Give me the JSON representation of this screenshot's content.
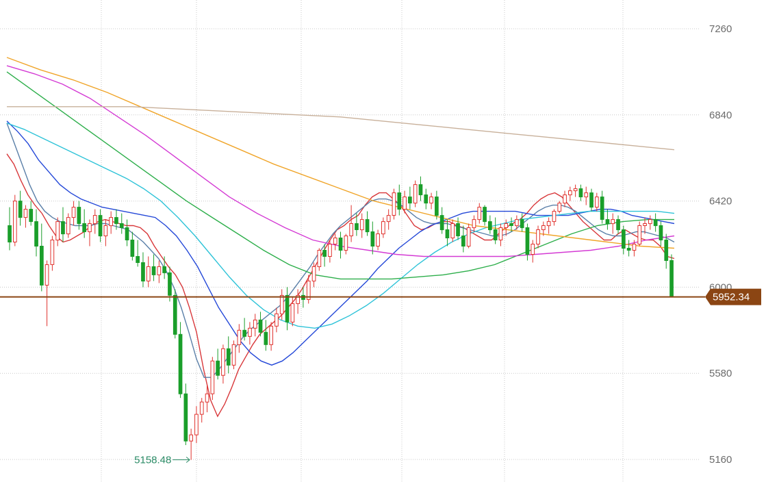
{
  "chart_data": {
    "type": "candlestick",
    "y_axis": {
      "ticks": [
        "7260",
        "6840",
        "6420",
        "6000",
        "5580",
        "5160"
      ],
      "tick_values": [
        7260,
        6840,
        6420,
        6000,
        5580,
        5160
      ],
      "ylim": [
        5050,
        7300
      ],
      "position": "right"
    },
    "grid": true,
    "current_price": {
      "value": 5952.34,
      "label": "5952.34",
      "color": "#8b4513"
    },
    "low_annotation": {
      "value": 5158.48,
      "label": "5158.48",
      "color": "#2c8c67"
    },
    "colors": {
      "up": "#e0312c",
      "down": "#1a9e2a",
      "grid": "#c8c8c8",
      "price_line": "#8b4513"
    },
    "candles": [
      {
        "o": 6300,
        "h": 6390,
        "l": 6180,
        "c": 6220
      },
      {
        "o": 6220,
        "h": 6450,
        "l": 6200,
        "c": 6420
      },
      {
        "o": 6420,
        "h": 6470,
        "l": 6300,
        "c": 6340
      },
      {
        "o": 6340,
        "h": 6400,
        "l": 6290,
        "c": 6380
      },
      {
        "o": 6380,
        "h": 6420,
        "l": 6300,
        "c": 6320
      },
      {
        "o": 6320,
        "h": 6380,
        "l": 6150,
        "c": 6200
      },
      {
        "o": 6200,
        "h": 6310,
        "l": 5980,
        "c": 6010
      },
      {
        "o": 6010,
        "h": 6130,
        "l": 5810,
        "c": 6110
      },
      {
        "o": 6110,
        "h": 6250,
        "l": 6080,
        "c": 6230
      },
      {
        "o": 6230,
        "h": 6340,
        "l": 6200,
        "c": 6320
      },
      {
        "o": 6320,
        "h": 6390,
        "l": 6220,
        "c": 6260
      },
      {
        "o": 6260,
        "h": 6360,
        "l": 6240,
        "c": 6340
      },
      {
        "o": 6340,
        "h": 6420,
        "l": 6300,
        "c": 6390
      },
      {
        "o": 6390,
        "h": 6420,
        "l": 6280,
        "c": 6310
      },
      {
        "o": 6310,
        "h": 6380,
        "l": 6240,
        "c": 6270
      },
      {
        "o": 6270,
        "h": 6330,
        "l": 6200,
        "c": 6310
      },
      {
        "o": 6310,
        "h": 6380,
        "l": 6260,
        "c": 6350
      },
      {
        "o": 6350,
        "h": 6380,
        "l": 6220,
        "c": 6250
      },
      {
        "o": 6250,
        "h": 6330,
        "l": 6200,
        "c": 6300
      },
      {
        "o": 6300,
        "h": 6370,
        "l": 6260,
        "c": 6340
      },
      {
        "o": 6340,
        "h": 6380,
        "l": 6280,
        "c": 6310
      },
      {
        "o": 6310,
        "h": 6360,
        "l": 6260,
        "c": 6290
      },
      {
        "o": 6290,
        "h": 6330,
        "l": 6200,
        "c": 6230
      },
      {
        "o": 6230,
        "h": 6270,
        "l": 6130,
        "c": 6150
      },
      {
        "o": 6150,
        "h": 6230,
        "l": 6100,
        "c": 6120
      },
      {
        "o": 6120,
        "h": 6170,
        "l": 6000,
        "c": 6030
      },
      {
        "o": 6030,
        "h": 6150,
        "l": 6000,
        "c": 6100
      },
      {
        "o": 6100,
        "h": 6160,
        "l": 6030,
        "c": 6060
      },
      {
        "o": 6060,
        "h": 6130,
        "l": 6020,
        "c": 6100
      },
      {
        "o": 6100,
        "h": 6150,
        "l": 6040,
        "c": 6070
      },
      {
        "o": 6070,
        "h": 6100,
        "l": 5930,
        "c": 5960
      },
      {
        "o": 5960,
        "h": 5990,
        "l": 5750,
        "c": 5770
      },
      {
        "o": 5770,
        "h": 5830,
        "l": 5460,
        "c": 5480
      },
      {
        "o": 5480,
        "h": 5530,
        "l": 5230,
        "c": 5250
      },
      {
        "o": 5250,
        "h": 5310,
        "l": 5158,
        "c": 5280
      },
      {
        "o": 5280,
        "h": 5420,
        "l": 5240,
        "c": 5380
      },
      {
        "o": 5380,
        "h": 5460,
        "l": 5340,
        "c": 5440
      },
      {
        "o": 5440,
        "h": 5520,
        "l": 5390,
        "c": 5480
      },
      {
        "o": 5480,
        "h": 5660,
        "l": 5450,
        "c": 5640
      },
      {
        "o": 5640,
        "h": 5700,
        "l": 5550,
        "c": 5570
      },
      {
        "o": 5570,
        "h": 5720,
        "l": 5530,
        "c": 5700
      },
      {
        "o": 5700,
        "h": 5760,
        "l": 5580,
        "c": 5620
      },
      {
        "o": 5620,
        "h": 5740,
        "l": 5600,
        "c": 5720
      },
      {
        "o": 5720,
        "h": 5820,
        "l": 5680,
        "c": 5790
      },
      {
        "o": 5790,
        "h": 5850,
        "l": 5740,
        "c": 5760
      },
      {
        "o": 5760,
        "h": 5830,
        "l": 5720,
        "c": 5800
      },
      {
        "o": 5800,
        "h": 5870,
        "l": 5760,
        "c": 5840
      },
      {
        "o": 5840,
        "h": 5880,
        "l": 5760,
        "c": 5780
      },
      {
        "o": 5780,
        "h": 5840,
        "l": 5690,
        "c": 5720
      },
      {
        "o": 5720,
        "h": 5830,
        "l": 5690,
        "c": 5810
      },
      {
        "o": 5810,
        "h": 5900,
        "l": 5780,
        "c": 5870
      },
      {
        "o": 5870,
        "h": 5990,
        "l": 5840,
        "c": 5960
      },
      {
        "o": 5960,
        "h": 6000,
        "l": 5790,
        "c": 5830
      },
      {
        "o": 5830,
        "h": 5950,
        "l": 5810,
        "c": 5920
      },
      {
        "o": 5920,
        "h": 5990,
        "l": 5870,
        "c": 5960
      },
      {
        "o": 5960,
        "h": 6000,
        "l": 5900,
        "c": 5940
      },
      {
        "o": 5940,
        "h": 6060,
        "l": 5920,
        "c": 6030
      },
      {
        "o": 6030,
        "h": 6120,
        "l": 6000,
        "c": 6100
      },
      {
        "o": 6100,
        "h": 6190,
        "l": 6080,
        "c": 6180
      },
      {
        "o": 6180,
        "h": 6210,
        "l": 6100,
        "c": 6150
      },
      {
        "o": 6150,
        "h": 6230,
        "l": 6120,
        "c": 6210
      },
      {
        "o": 6210,
        "h": 6260,
        "l": 6180,
        "c": 6240
      },
      {
        "o": 6240,
        "h": 6270,
        "l": 6140,
        "c": 6180
      },
      {
        "o": 6180,
        "h": 6260,
        "l": 6160,
        "c": 6250
      },
      {
        "o": 6250,
        "h": 6400,
        "l": 6220,
        "c": 6310
      },
      {
        "o": 6310,
        "h": 6360,
        "l": 6250,
        "c": 6280
      },
      {
        "o": 6280,
        "h": 6360,
        "l": 6240,
        "c": 6330
      },
      {
        "o": 6330,
        "h": 6370,
        "l": 6250,
        "c": 6270
      },
      {
        "o": 6270,
        "h": 6320,
        "l": 6160,
        "c": 6200
      },
      {
        "o": 6200,
        "h": 6280,
        "l": 6180,
        "c": 6260
      },
      {
        "o": 6260,
        "h": 6340,
        "l": 6240,
        "c": 6320
      },
      {
        "o": 6320,
        "h": 6380,
        "l": 6280,
        "c": 6350
      },
      {
        "o": 6350,
        "h": 6480,
        "l": 6330,
        "c": 6460
      },
      {
        "o": 6460,
        "h": 6500,
        "l": 6350,
        "c": 6380
      },
      {
        "o": 6380,
        "h": 6470,
        "l": 6360,
        "c": 6440
      },
      {
        "o": 6440,
        "h": 6490,
        "l": 6380,
        "c": 6410
      },
      {
        "o": 6410,
        "h": 6520,
        "l": 6390,
        "c": 6500
      },
      {
        "o": 6500,
        "h": 6540,
        "l": 6420,
        "c": 6450
      },
      {
        "o": 6450,
        "h": 6480,
        "l": 6380,
        "c": 6410
      },
      {
        "o": 6410,
        "h": 6460,
        "l": 6380,
        "c": 6440
      },
      {
        "o": 6440,
        "h": 6470,
        "l": 6330,
        "c": 6350
      },
      {
        "o": 6350,
        "h": 6390,
        "l": 6260,
        "c": 6280
      },
      {
        "o": 6280,
        "h": 6330,
        "l": 6200,
        "c": 6240
      },
      {
        "o": 6240,
        "h": 6330,
        "l": 6220,
        "c": 6310
      },
      {
        "o": 6310,
        "h": 6340,
        "l": 6230,
        "c": 6250
      },
      {
        "o": 6250,
        "h": 6300,
        "l": 6170,
        "c": 6200
      },
      {
        "o": 6200,
        "h": 6310,
        "l": 6190,
        "c": 6290
      },
      {
        "o": 6290,
        "h": 6350,
        "l": 6270,
        "c": 6330
      },
      {
        "o": 6330,
        "h": 6410,
        "l": 6310,
        "c": 6390
      },
      {
        "o": 6390,
        "h": 6400,
        "l": 6300,
        "c": 6320
      },
      {
        "o": 6320,
        "h": 6350,
        "l": 6260,
        "c": 6280
      },
      {
        "o": 6280,
        "h": 6340,
        "l": 6210,
        "c": 6230
      },
      {
        "o": 6230,
        "h": 6310,
        "l": 6200,
        "c": 6290
      },
      {
        "o": 6290,
        "h": 6330,
        "l": 6250,
        "c": 6310
      },
      {
        "o": 6310,
        "h": 6340,
        "l": 6270,
        "c": 6300
      },
      {
        "o": 6300,
        "h": 6350,
        "l": 6280,
        "c": 6330
      },
      {
        "o": 6330,
        "h": 6360,
        "l": 6270,
        "c": 6290
      },
      {
        "o": 6290,
        "h": 6310,
        "l": 6130,
        "c": 6160
      },
      {
        "o": 6160,
        "h": 6230,
        "l": 6120,
        "c": 6210
      },
      {
        "o": 6210,
        "h": 6300,
        "l": 6190,
        "c": 6280
      },
      {
        "o": 6280,
        "h": 6320,
        "l": 6250,
        "c": 6300
      },
      {
        "o": 6300,
        "h": 6340,
        "l": 6260,
        "c": 6320
      },
      {
        "o": 6320,
        "h": 6380,
        "l": 6300,
        "c": 6370
      },
      {
        "o": 6370,
        "h": 6420,
        "l": 6360,
        "c": 6410
      },
      {
        "o": 6410,
        "h": 6470,
        "l": 6390,
        "c": 6450
      },
      {
        "o": 6450,
        "h": 6490,
        "l": 6420,
        "c": 6470
      },
      {
        "o": 6470,
        "h": 6500,
        "l": 6440,
        "c": 6480
      },
      {
        "o": 6480,
        "h": 6500,
        "l": 6420,
        "c": 6440
      },
      {
        "o": 6440,
        "h": 6490,
        "l": 6400,
        "c": 6460
      },
      {
        "o": 6460,
        "h": 6480,
        "l": 6370,
        "c": 6390
      },
      {
        "o": 6390,
        "h": 6460,
        "l": 6370,
        "c": 6440
      },
      {
        "o": 6440,
        "h": 6470,
        "l": 6310,
        "c": 6330
      },
      {
        "o": 6330,
        "h": 6380,
        "l": 6280,
        "c": 6310
      },
      {
        "o": 6310,
        "h": 6360,
        "l": 6260,
        "c": 6330
      },
      {
        "o": 6330,
        "h": 6350,
        "l": 6260,
        "c": 6280
      },
      {
        "o": 6280,
        "h": 6300,
        "l": 6160,
        "c": 6190
      },
      {
        "o": 6190,
        "h": 6230,
        "l": 6150,
        "c": 6180
      },
      {
        "o": 6180,
        "h": 6230,
        "l": 6150,
        "c": 6210
      },
      {
        "o": 6210,
        "h": 6320,
        "l": 6200,
        "c": 6300
      },
      {
        "o": 6300,
        "h": 6340,
        "l": 6260,
        "c": 6310
      },
      {
        "o": 6310,
        "h": 6350,
        "l": 6280,
        "c": 6330
      },
      {
        "o": 6330,
        "h": 6360,
        "l": 6270,
        "c": 6300
      },
      {
        "o": 6300,
        "h": 6320,
        "l": 6200,
        "c": 6230
      },
      {
        "o": 6230,
        "h": 6260,
        "l": 6090,
        "c": 6130
      },
      {
        "o": 6130,
        "h": 6160,
        "l": 5952,
        "c": 5952
      }
    ],
    "moving_averages": [
      {
        "color": "#d8373a",
        "values": [
          6650,
          6600,
          6520,
          6450,
          6400,
          6360,
          6300,
          6250,
          6220,
          6230,
          6250,
          6270,
          6300,
          6320,
          6330,
          6320,
          6310,
          6300,
          6300,
          6290,
          6260,
          6200,
          6150,
          6100,
          6060,
          6000,
          5900,
          5780,
          5600,
          5450,
          5370,
          5430,
          5510,
          5600,
          5660,
          5720,
          5770,
          5800,
          5830,
          5860,
          5900,
          5940,
          5990,
          6050,
          6110,
          6170,
          6230,
          6280,
          6300,
          6330,
          6350,
          6400,
          6440,
          6460,
          6460,
          6430,
          6400,
          6350,
          6300,
          6280,
          6290,
          6310,
          6320,
          6320,
          6300,
          6290,
          6270,
          6250,
          6230,
          6230,
          6260,
          6290,
          6310,
          6330,
          6360,
          6400,
          6430,
          6450,
          6460,
          6440,
          6400,
          6360,
          6320,
          6290,
          6260,
          6230,
          6230,
          6260,
          6280,
          6260,
          6240,
          6230,
          6230,
          6200,
          6150,
          6140
        ]
      },
      {
        "color": "#5a7fa8",
        "values": [
          6800,
          6700,
          6600,
          6500,
          6420,
          6370,
          6340,
          6320,
          6310,
          6300,
          6300,
          6300,
          6310,
          6310,
          6300,
          6290,
          6280,
          6250,
          6220,
          6180,
          6140,
          6080,
          6000,
          5900,
          5780,
          5650,
          5560,
          5560,
          5600,
          5650,
          5700,
          5750,
          5790,
          5820,
          5850,
          5880,
          5910,
          5950,
          6000,
          6050,
          6100,
          6160,
          6210,
          6260,
          6300,
          6330,
          6360,
          6390,
          6420,
          6430,
          6430,
          6420,
          6400,
          6370,
          6340,
          6320,
          6310,
          6310,
          6310,
          6300,
          6290,
          6280,
          6270,
          6260,
          6250,
          6250,
          6260,
          6280,
          6310,
          6340,
          6370,
          6390,
          6400,
          6400,
          6390,
          6370,
          6340,
          6310,
          6280,
          6260,
          6250,
          6250,
          6260,
          6270,
          6270,
          6260,
          6250,
          6240,
          6220
        ]
      },
      {
        "color": "#2448d8",
        "values": [
          6810,
          6760,
          6700,
          6620,
          6560,
          6500,
          6460,
          6430,
          6410,
          6390,
          6380,
          6370,
          6360,
          6350,
          6340,
          6300,
          6250,
          6180,
          6100,
          6000,
          5900,
          5820,
          5740,
          5680,
          5640,
          5620,
          5640,
          5680,
          5730,
          5780,
          5830,
          5880,
          5930,
          5980,
          6030,
          6090,
          6140,
          6190,
          6230,
          6270,
          6300,
          6320,
          6340,
          6360,
          6370,
          6370,
          6370,
          6370,
          6370,
          6360,
          6350,
          6350,
          6350,
          6350,
          6360,
          6370,
          6380,
          6380,
          6370,
          6350,
          6340,
          6330,
          6320,
          6310
        ]
      },
      {
        "color": "#2ec3d8",
        "values": [
          6800,
          6770,
          6730,
          6690,
          6650,
          6610,
          6570,
          6530,
          6480,
          6420,
          6340,
          6250,
          6150,
          6050,
          5960,
          5890,
          5840,
          5810,
          5800,
          5820,
          5860,
          5910,
          5970,
          6040,
          6110,
          6170,
          6220,
          6260,
          6290,
          6310,
          6330,
          6340,
          6350,
          6360,
          6370,
          6370,
          6370,
          6370,
          6370,
          6360
        ]
      },
      {
        "color": "#2cae4a",
        "values": [
          7050,
          6960,
          6870,
          6780,
          6690,
          6600,
          6510,
          6420,
          6340,
          6260,
          6180,
          6110,
          6060,
          6040,
          6040,
          6040,
          6050,
          6060,
          6080,
          6110,
          6160,
          6210,
          6260,
          6300,
          6320,
          6330,
          6330
        ]
      },
      {
        "color": "#d43ad4",
        "values": [
          7080,
          7040,
          6990,
          6920,
          6830,
          6740,
          6640,
          6540,
          6440,
          6360,
          6290,
          6230,
          6200,
          6180,
          6160,
          6150,
          6150,
          6150,
          6150,
          6160,
          6170,
          6180,
          6200,
          6230,
          6250
        ]
      },
      {
        "color": "#f0a52a",
        "values": [
          7120,
          7060,
          7010,
          6950,
          6880,
          6810,
          6740,
          6670,
          6600,
          6540,
          6480,
          6420,
          6380,
          6340,
          6300,
          6280,
          6260,
          6240,
          6220,
          6200,
          6190
        ]
      },
      {
        "color": "#c8b09a",
        "values": [
          6880,
          6880,
          6880,
          6880,
          6870,
          6860,
          6850,
          6840,
          6830,
          6810,
          6790,
          6770,
          6750,
          6730,
          6710,
          6690,
          6670
        ]
      }
    ]
  }
}
